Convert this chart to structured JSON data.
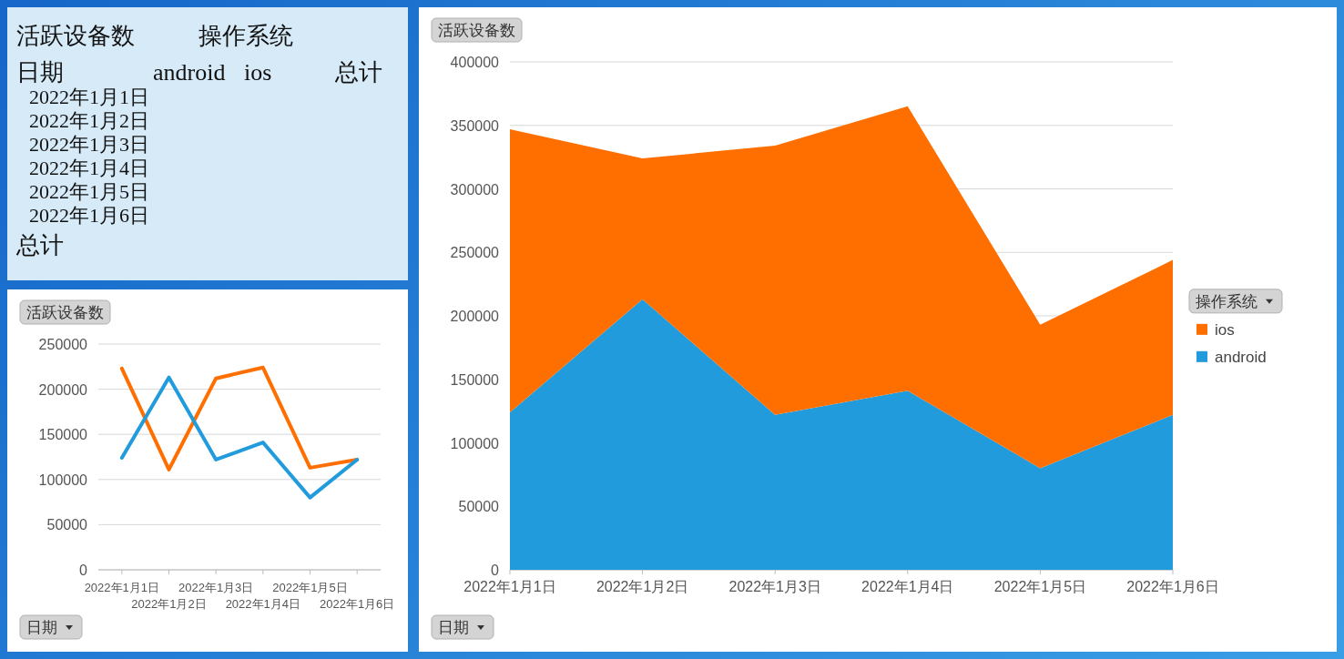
{
  "chart_data": [
    {
      "type": "other",
      "annotations": [
        "活跃设备数",
        "操作系统",
        "日期",
        "android",
        "ios",
        "总计",
        "2022年1月1日",
        "2022年1月2日",
        "2022年1月3日",
        "2022年1月4日",
        "2022年1月5日",
        "2022年1月6日",
        "总计"
      ]
    },
    {
      "type": "line",
      "title": "活跃设备数",
      "xlabel": "日期",
      "categories": [
        "2022年1月1日",
        "2022年1月2日",
        "2022年1月3日",
        "2022年1月4日",
        "2022年1月5日",
        "2022年1月6日"
      ],
      "series": [
        {
          "color": "#ff6f00",
          "values": [
            223000,
            111000,
            212000,
            224000,
            113000,
            122000
          ]
        },
        {
          "color": "#229bdd",
          "values": [
            124000,
            213000,
            122000,
            141000,
            80000,
            122000
          ]
        }
      ],
      "ylim": [
        0,
        250000
      ],
      "yticks": [
        0,
        50000,
        100000,
        150000,
        200000,
        250000
      ],
      "grid": "y"
    },
    {
      "type": "area",
      "stacked": true,
      "title": "活跃设备数",
      "xlabel": "日期",
      "legend_title": "操作系统",
      "categories": [
        "2022年1月1日",
        "2022年1月2日",
        "2022年1月3日",
        "2022年1月4日",
        "2022年1月5日",
        "2022年1月6日"
      ],
      "series": [
        {
          "name": "android",
          "color": "#229bdd",
          "values": [
            124000,
            213000,
            122000,
            141000,
            80000,
            122000
          ]
        },
        {
          "name": "ios",
          "color": "#ff6f00",
          "values": [
            223000,
            111000,
            212000,
            224000,
            113000,
            122000
          ]
        }
      ],
      "ylim": [
        0,
        400000
      ],
      "yticks": [
        0,
        50000,
        100000,
        150000,
        200000,
        250000,
        300000,
        350000,
        400000
      ],
      "grid": "y",
      "legend": "right"
    }
  ]
}
